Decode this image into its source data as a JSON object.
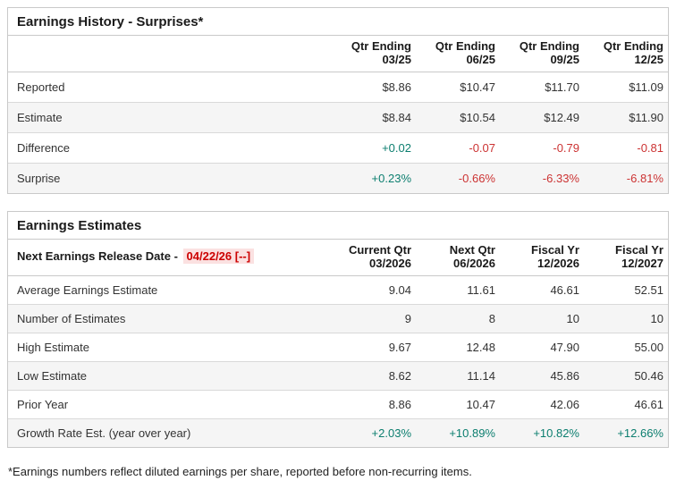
{
  "colors": {
    "positive": "#0c7e6f",
    "negative": "#cc3333",
    "release_date_text": "#cc0000",
    "release_date_bg": "#fbe1e1"
  },
  "history_table": {
    "title": "Earnings History - Surprises*",
    "columns": [
      [
        "Qtr Ending",
        "03/25"
      ],
      [
        "Qtr Ending",
        "06/25"
      ],
      [
        "Qtr Ending",
        "09/25"
      ],
      [
        "Qtr Ending",
        "12/25"
      ]
    ],
    "rows": [
      {
        "label": "Reported",
        "values": [
          "$8.86",
          "$10.47",
          "$11.70",
          "$11.09"
        ],
        "colored": false
      },
      {
        "label": "Estimate",
        "values": [
          "$8.84",
          "$10.54",
          "$12.49",
          "$11.90"
        ],
        "colored": false
      },
      {
        "label": "Difference",
        "values": [
          "+0.02",
          "-0.07",
          "-0.79",
          "-0.81"
        ],
        "colored": true
      },
      {
        "label": "Surprise",
        "values": [
          "+0.23%",
          "-0.66%",
          "-6.33%",
          "-6.81%"
        ],
        "colored": true
      }
    ]
  },
  "estimates_table": {
    "title": "Earnings Estimates",
    "release_date_label": "Next Earnings Release Date - ",
    "release_date_value": "04/22/26 [--]",
    "columns": [
      [
        "Current Qtr",
        "03/2026"
      ],
      [
        "Next Qtr",
        "06/2026"
      ],
      [
        "Fiscal Yr",
        "12/2026"
      ],
      [
        "Fiscal Yr",
        "12/2027"
      ]
    ],
    "rows": [
      {
        "label": "Average Earnings Estimate",
        "values": [
          "9.04",
          "11.61",
          "46.61",
          "52.51"
        ],
        "colored": false
      },
      {
        "label": "Number of Estimates",
        "values": [
          "9",
          "8",
          "10",
          "10"
        ],
        "colored": false
      },
      {
        "label": "High Estimate",
        "values": [
          "9.67",
          "12.48",
          "47.90",
          "55.00"
        ],
        "colored": false
      },
      {
        "label": "Low Estimate",
        "values": [
          "8.62",
          "11.14",
          "45.86",
          "50.46"
        ],
        "colored": false
      },
      {
        "label": "Prior Year",
        "values": [
          "8.86",
          "10.47",
          "42.06",
          "46.61"
        ],
        "colored": false
      },
      {
        "label": "Growth Rate Est. (year over year)",
        "values": [
          "+2.03%",
          "+10.89%",
          "+10.82%",
          "+12.66%"
        ],
        "colored": true
      }
    ]
  },
  "page": {
    "footnote": "*Earnings numbers reflect diluted earnings per share, reported before non-recurring items."
  }
}
